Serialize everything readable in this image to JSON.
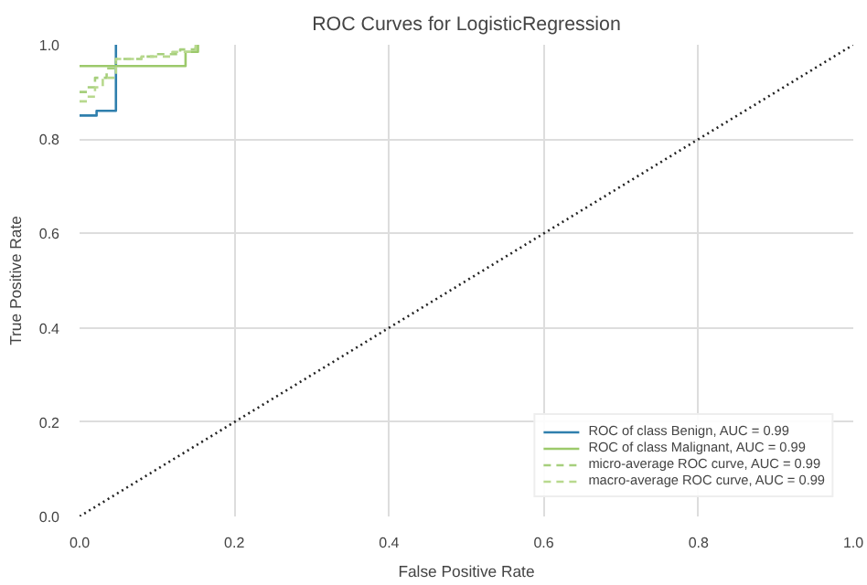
{
  "chart_data": {
    "type": "step",
    "title": "ROC Curves for LogisticRegression",
    "xlabel": "False Positive Rate",
    "ylabel": "True Positive Rate",
    "xlim": [
      0,
      1
    ],
    "ylim": [
      0,
      1
    ],
    "xticks": [
      {
        "value": 0,
        "label": "0.0"
      },
      {
        "value": 0.2,
        "label": "0.2"
      },
      {
        "value": 0.4,
        "label": "0.4"
      },
      {
        "value": 0.6,
        "label": "0.6"
      },
      {
        "value": 0.8,
        "label": "0.8"
      },
      {
        "value": 1,
        "label": "1.0"
      }
    ],
    "yticks": [
      {
        "value": 0,
        "label": "0.0"
      },
      {
        "value": 0.2,
        "label": "0.2"
      },
      {
        "value": 0.4,
        "label": "0.4"
      },
      {
        "value": 0.6,
        "label": "0.6"
      },
      {
        "value": 0.8,
        "label": "0.8"
      },
      {
        "value": 1,
        "label": "1.0"
      }
    ],
    "grid": true,
    "legend": "bottom right",
    "marker": "none",
    "series": [
      {
        "name": "ROC of class Benign, AUC = 0.99",
        "color": "#2f7fad",
        "line_style": "solid",
        "x": [
          0,
          0.022,
          0.047,
          0.047
        ],
        "values": [
          0.85,
          0.86,
          0.86,
          1.0
        ]
      },
      {
        "name": "ROC of class Malignant, AUC = 0.99",
        "color": "#9cc96b",
        "line_style": "solid",
        "x": [
          0,
          0.137,
          0.153,
          0.153
        ],
        "values": [
          0.955,
          0.985,
          0.985,
          1.0
        ]
      },
      {
        "name": "micro-average ROC curve, AUC = 0.99",
        "color": "#a6cf7c",
        "line_style": "dashed",
        "x": [
          0,
          0.01,
          0.02,
          0.035,
          0.047,
          0.08,
          0.1,
          0.13,
          0.15
        ],
        "values": [
          0.9,
          0.91,
          0.93,
          0.95,
          0.97,
          0.975,
          0.98,
          0.99,
          1.0
        ]
      },
      {
        "name": "macro-average ROC curve, AUC = 0.99",
        "color": "#b8d98e",
        "line_style": "dashed",
        "x": [
          0,
          0.01,
          0.02,
          0.03,
          0.047,
          0.08,
          0.12,
          0.15
        ],
        "values": [
          0.88,
          0.89,
          0.91,
          0.93,
          0.97,
          0.975,
          0.985,
          1.0
        ]
      },
      {
        "type": "line",
        "color": "#222222",
        "line_style": "dotted",
        "x": [
          0,
          1
        ],
        "values": [
          0,
          1
        ]
      }
    ]
  }
}
